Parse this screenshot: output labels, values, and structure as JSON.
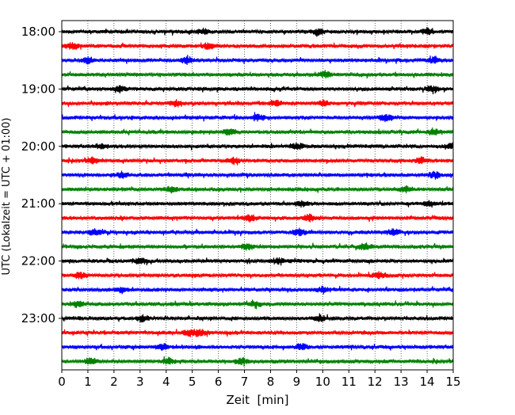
{
  "chart_data": {
    "type": "line",
    "xlabel": "Zeit  [min]",
    "ylabel": "UTC (Lokalzeit = UTC + 01:00)",
    "xlim": [
      0,
      15
    ],
    "x_ticks": [
      0,
      1,
      2,
      3,
      4,
      5,
      6,
      7,
      8,
      9,
      10,
      11,
      12,
      13,
      14,
      15
    ],
    "x_grid": true,
    "y_ticks": [
      {
        "label": "18:00",
        "trace": 0
      },
      {
        "label": "19:00",
        "trace": 4
      },
      {
        "label": "20:00",
        "trace": 8
      },
      {
        "label": "21:00",
        "trace": 12
      },
      {
        "label": "22:00",
        "trace": 16
      },
      {
        "label": "23:00",
        "trace": 20
      }
    ],
    "trace_interval_min": 15,
    "color_cycle": [
      "#000000",
      "#ff0000",
      "#0000ff",
      "#008000"
    ],
    "traces": [
      {
        "start": "18:00",
        "color": "#000000",
        "events": [
          5.4,
          9.8,
          14.0
        ]
      },
      {
        "start": "18:15",
        "color": "#ff0000",
        "events": [
          0.4,
          5.6
        ]
      },
      {
        "start": "18:30",
        "color": "#0000ff",
        "events": [
          1.0,
          4.8,
          14.3
        ]
      },
      {
        "start": "18:45",
        "color": "#008000",
        "events": [
          10.1
        ]
      },
      {
        "start": "19:00",
        "color": "#000000",
        "events": [
          2.2,
          14.2
        ]
      },
      {
        "start": "19:15",
        "color": "#ff0000",
        "events": [
          4.4,
          8.2,
          10.0
        ]
      },
      {
        "start": "19:30",
        "color": "#0000ff",
        "events": [
          7.5,
          12.4
        ]
      },
      {
        "start": "19:45",
        "color": "#008000",
        "events": [
          6.5,
          14.3
        ]
      },
      {
        "start": "20:00",
        "color": "#000000",
        "events": [
          1.5,
          9.0,
          14.9
        ]
      },
      {
        "start": "20:15",
        "color": "#ff0000",
        "events": [
          1.2,
          6.6,
          13.8
        ]
      },
      {
        "start": "20:30",
        "color": "#0000ff",
        "events": [
          2.3,
          14.3
        ]
      },
      {
        "start": "20:45",
        "color": "#008000",
        "events": [
          4.2,
          13.2
        ]
      },
      {
        "start": "21:00",
        "color": "#000000",
        "events": [
          9.2,
          14.1
        ]
      },
      {
        "start": "21:15",
        "color": "#ff0000",
        "events": [
          7.2,
          9.5
        ]
      },
      {
        "start": "21:30",
        "color": "#0000ff",
        "events": [
          1.3,
          9.1,
          12.7
        ]
      },
      {
        "start": "21:45",
        "color": "#008000",
        "events": [
          7.1,
          11.6
        ]
      },
      {
        "start": "22:00",
        "color": "#000000",
        "events": [
          3.0,
          8.3
        ]
      },
      {
        "start": "22:15",
        "color": "#ff0000",
        "events": [
          0.7,
          12.2
        ]
      },
      {
        "start": "22:30",
        "color": "#0000ff",
        "events": [
          2.3,
          10.0
        ]
      },
      {
        "start": "22:45",
        "color": "#008000",
        "events": [
          0.6,
          7.4
        ]
      },
      {
        "start": "23:00",
        "color": "#000000",
        "events": [
          3.1,
          9.9
        ]
      },
      {
        "start": "23:15",
        "color": "#ff0000",
        "events": [
          4.9,
          5.3
        ]
      },
      {
        "start": "23:30",
        "color": "#0000ff",
        "events": [
          3.8,
          9.2
        ]
      },
      {
        "start": "23:45",
        "color": "#008000",
        "events": [
          1.1,
          4.1,
          6.9
        ]
      }
    ]
  }
}
